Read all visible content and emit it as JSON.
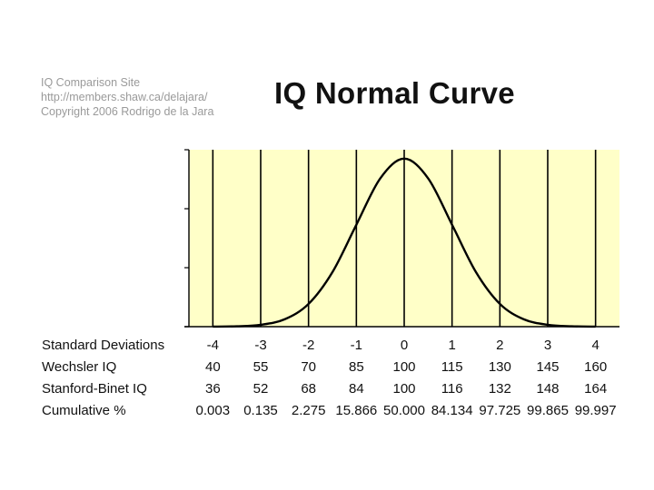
{
  "credit": {
    "line1": "IQ Comparison Site",
    "line2": "http://members.shaw.ca/delajara/",
    "line3": "Copyright 2006 Rodrigo de la Jara"
  },
  "colors": {
    "plot_bg": "#ffffc8",
    "curve": "#000000",
    "grid": "#000000"
  },
  "chart_data": {
    "type": "line",
    "title": "IQ Normal Curve",
    "x": [
      -4,
      -3.5,
      -3,
      -2.5,
      -2,
      -1.5,
      -1,
      -0.5,
      0,
      0.5,
      1,
      1.5,
      2,
      2.5,
      3,
      3.5,
      4
    ],
    "series": [
      {
        "values": [
          0.0001,
          0.0009,
          0.0044,
          0.0175,
          0.054,
          0.1295,
          0.242,
          0.3521,
          0.3989,
          0.3521,
          0.242,
          0.1295,
          0.054,
          0.0175,
          0.0044,
          0.0009,
          0.0001
        ]
      }
    ],
    "xlim": [
      -4,
      4
    ],
    "ylim": [
      0,
      0.42
    ],
    "grid": true,
    "table": [
      {
        "label": "Standard Deviations",
        "values": [
          "-4",
          "-3",
          "-2",
          "-1",
          "0",
          "1",
          "2",
          "3",
          "4"
        ]
      },
      {
        "label": "Wechsler IQ",
        "values": [
          "40",
          "55",
          "70",
          "85",
          "100",
          "115",
          "130",
          "145",
          "160"
        ]
      },
      {
        "label": "Stanford-Binet IQ",
        "values": [
          "36",
          "52",
          "68",
          "84",
          "100",
          "116",
          "132",
          "148",
          "164"
        ]
      },
      {
        "label": "Cumulative %",
        "values": [
          "0.003",
          "0.135",
          "2.275",
          "15.866",
          "50.000",
          "84.134",
          "97.725",
          "99.865",
          "99.997"
        ]
      }
    ]
  }
}
